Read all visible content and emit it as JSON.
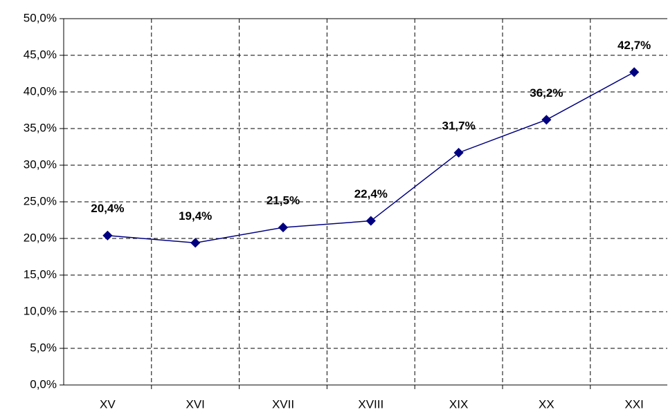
{
  "chart_data": {
    "type": "line",
    "categories": [
      "XV",
      "XVI",
      "XVII",
      "XVIII",
      "XIX",
      "XX",
      "XXI"
    ],
    "series": [
      {
        "color": "#000080",
        "values": [
          20.4,
          19.4,
          21.5,
          22.4,
          31.7,
          36.2,
          42.7
        ],
        "value_labels": [
          "20,4%",
          "19,4%",
          "21,5%",
          "22,4%",
          "31,7%",
          "36,2%",
          "42,7%"
        ]
      }
    ],
    "ylim": [
      0,
      50
    ],
    "yticks": [
      {
        "value": 0,
        "label": "0,0%"
      },
      {
        "value": 5,
        "label": "5,0%"
      },
      {
        "value": 10,
        "label": "10,0%"
      },
      {
        "value": 15,
        "label": "15,0%"
      },
      {
        "value": 20,
        "label": "20,0%"
      },
      {
        "value": 25,
        "label": "25,0%"
      },
      {
        "value": 30,
        "label": "30,0%"
      },
      {
        "value": 35,
        "label": "35,0%"
      },
      {
        "value": 40,
        "label": "40,0%"
      },
      {
        "value": 45,
        "label": "45,0%"
      },
      {
        "value": 50,
        "label": "50,0%"
      }
    ],
    "grid": true
  }
}
